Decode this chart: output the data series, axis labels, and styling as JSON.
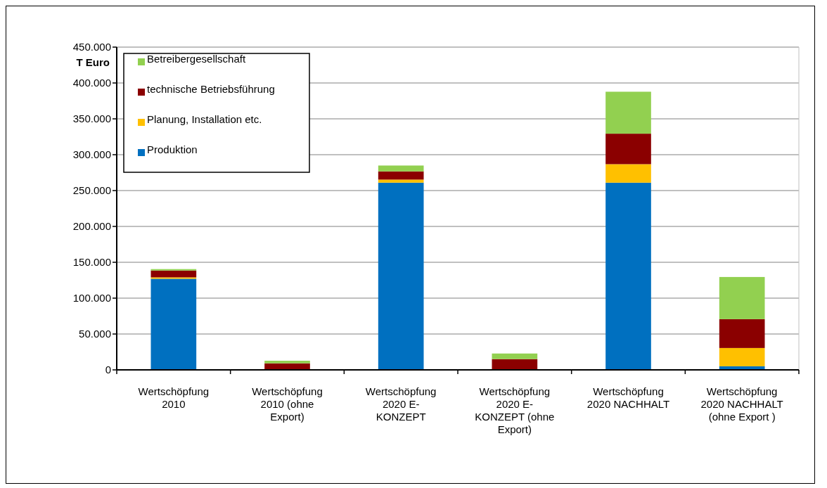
{
  "chart_data": {
    "type": "bar",
    "stacked": true,
    "ylabel": "T Euro",
    "categories": [
      "Wertschöpfung 2010",
      "Wertschöpfung 2010 (ohne Export)",
      "Wertschöpfung 2020 E-KONZEPT",
      "Wertschöpfung 2020 E-KONZEPT (ohne Export)",
      "Wertschöpfung 2020 NACHHALT",
      "Wertschöpfung 2020 NACHHALT (ohne Export )"
    ],
    "series": [
      {
        "name": "Produktion",
        "color": "#0070c0",
        "values": [
          127000,
          0,
          261000,
          0,
          261000,
          5000
        ]
      },
      {
        "name": "Planung, Installation etc.",
        "color": "#ffc000",
        "values": [
          2000,
          0,
          4300,
          0,
          25800,
          25500
        ]
      },
      {
        "name": "technische Betriebsführung",
        "color": "#8b0000",
        "values": [
          9500,
          9100,
          11400,
          15000,
          42500,
          40200
        ]
      },
      {
        "name": "Betreibergesellschaft",
        "color": "#92d050",
        "values": [
          2000,
          3600,
          8200,
          7800,
          58500,
          58800
        ]
      }
    ],
    "ylim": [
      0,
      450000
    ],
    "yticks": [
      {
        "value": 0,
        "label": "0"
      },
      {
        "value": 50000,
        "label": "50.000"
      },
      {
        "value": 100000,
        "label": "100.000"
      },
      {
        "value": 150000,
        "label": "150.000"
      },
      {
        "value": 200000,
        "label": "200.000"
      },
      {
        "value": 250000,
        "label": "250.000"
      },
      {
        "value": 300000,
        "label": "300.000"
      },
      {
        "value": 350000,
        "label": "350.000"
      },
      {
        "value": 400000,
        "label": "400.000"
      },
      {
        "value": 450000,
        "label": "450.000"
      }
    ],
    "grid": "y",
    "legend": "top left"
  }
}
